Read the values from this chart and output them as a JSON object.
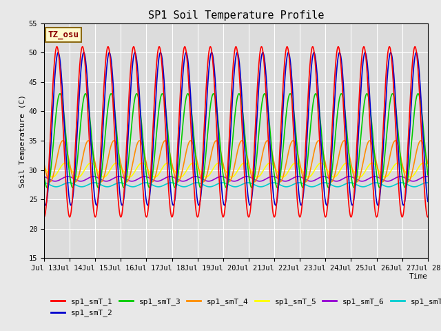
{
  "title": "SP1 Soil Temperature Profile",
  "xlabel": "Time",
  "ylabel": "Soil Temperature (C)",
  "ylim": [
    15,
    55
  ],
  "xtick_labels": [
    "Jul 13",
    "Jul 14",
    "Jul 15",
    "Jul 16",
    "Jul 17",
    "Jul 18",
    "Jul 19",
    "Jul 20",
    "Jul 21",
    "Jul 22",
    "Jul 23",
    "Jul 24",
    "Jul 25",
    "Jul 26",
    "Jul 27",
    "Jul 28"
  ],
  "ytick_values": [
    15,
    20,
    25,
    30,
    35,
    40,
    45,
    50,
    55
  ],
  "annotation_text": "TZ_osu",
  "annotation_color": "#8B0000",
  "annotation_bg": "#FFFACD",
  "annotation_border": "#8B6914",
  "series_colors": {
    "sp1_smT_1": "#FF0000",
    "sp1_smT_2": "#0000CD",
    "sp1_smT_3": "#00CC00",
    "sp1_smT_4": "#FF8C00",
    "sp1_smT_5": "#FFFF00",
    "sp1_smT_6": "#9400D3",
    "sp1_smT_7": "#00CED1"
  },
  "sp1_smT_1": {
    "mean": 36.5,
    "amplitude": 14.5,
    "phase": 0.25
  },
  "sp1_smT_2": {
    "mean": 37.0,
    "amplitude": 13.0,
    "phase": 0.3
  },
  "sp1_smT_3": {
    "mean": 35.0,
    "amplitude": 8.0,
    "phase": 0.37
  },
  "sp1_smT_4": {
    "mean": 31.5,
    "amplitude": 3.5,
    "phase": 0.48
  },
  "sp1_smT_5": {
    "mean": 30.0,
    "amplitude": 1.2,
    "phase": 0.58
  },
  "sp1_smT_6": {
    "mean": 28.5,
    "amplitude": 0.4,
    "phase": 0.68
  },
  "sp1_smT_7": {
    "mean": 27.5,
    "amplitude": 0.35,
    "phase": 0.72
  },
  "background_color": "#E8E8E8",
  "plot_bg_color": "#DCDCDC",
  "grid_color": "#FFFFFF",
  "title_fontsize": 11,
  "label_fontsize": 8,
  "tick_fontsize": 7.5,
  "legend_fontsize": 8,
  "linewidth": 1.2
}
